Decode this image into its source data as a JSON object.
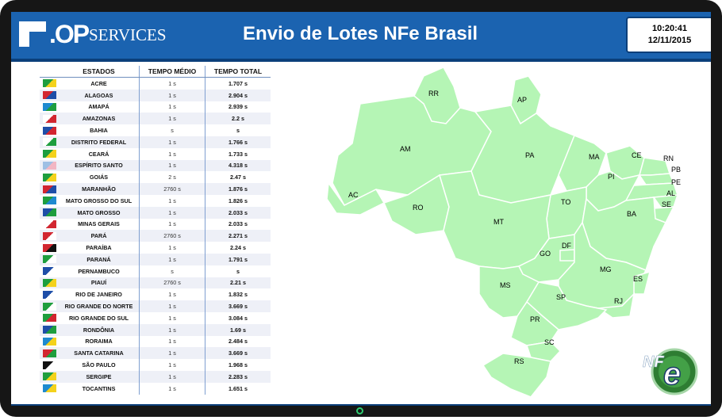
{
  "header": {
    "logo_op": ".OP",
    "logo_services": "SERVICES",
    "title": "Envio de Lotes NFe Brasil",
    "time": "10:20:41",
    "date": "12/11/2015"
  },
  "table": {
    "col_state": "ESTADOS",
    "col_avg": "TEMPO MÉDIO",
    "col_total": "TEMPO TOTAL",
    "rows": [
      {
        "state": "ACRE",
        "avg": "1 s",
        "total": "1.707 s",
        "flag": [
          "#1e9e3e",
          "#f4d21c"
        ]
      },
      {
        "state": "ALAGOAS",
        "avg": "1 s",
        "total": "2.904 s",
        "flag": [
          "#d22630",
          "#1e4ea8"
        ]
      },
      {
        "state": "AMAPÁ",
        "avg": "1 s",
        "total": "2.939 s",
        "flag": [
          "#1e8ad0",
          "#1e9e3e"
        ]
      },
      {
        "state": "AMAZONAS",
        "avg": "1 s",
        "total": "2.2 s",
        "flag": [
          "#ffffff",
          "#d22630"
        ]
      },
      {
        "state": "BAHIA",
        "avg": "s",
        "total": "s",
        "flag": [
          "#1e4ea8",
          "#d22630"
        ]
      },
      {
        "state": "DISTRITO FEDERAL",
        "avg": "1 s",
        "total": "1.766 s",
        "flag": [
          "#ffffff",
          "#1e9e3e"
        ]
      },
      {
        "state": "CEARÁ",
        "avg": "1 s",
        "total": "1.733 s",
        "flag": [
          "#1e9e3e",
          "#f4d21c"
        ]
      },
      {
        "state": "ESPÍRITO SANTO",
        "avg": "1 s",
        "total": "4.318 s",
        "flag": [
          "#9ebfe4",
          "#f2b6c3"
        ]
      },
      {
        "state": "GOIÁS",
        "avg": "2 s",
        "total": "2.47 s",
        "flag": [
          "#1e9e3e",
          "#f4d21c"
        ]
      },
      {
        "state": "MARANHÃO",
        "avg": "2760 s",
        "total": "1.876 s",
        "flag": [
          "#d22630",
          "#1e4ea8"
        ]
      },
      {
        "state": "MATO GROSSO DO SUL",
        "avg": "1 s",
        "total": "1.826 s",
        "flag": [
          "#1e9e3e",
          "#1e8ad0"
        ]
      },
      {
        "state": "MATO GROSSO",
        "avg": "1 s",
        "total": "2.033 s",
        "flag": [
          "#1e4ea8",
          "#1e9e3e"
        ]
      },
      {
        "state": "MINAS GERAIS",
        "avg": "1 s",
        "total": "2.033 s",
        "flag": [
          "#ffffff",
          "#d22630"
        ]
      },
      {
        "state": "PARÁ",
        "avg": "2760 s",
        "total": "2.271 s",
        "flag": [
          "#d22630",
          "#ffffff"
        ]
      },
      {
        "state": "PARAÍBA",
        "avg": "1 s",
        "total": "2.24 s",
        "flag": [
          "#d22630",
          "#111111"
        ]
      },
      {
        "state": "PARANÁ",
        "avg": "1 s",
        "total": "1.791 s",
        "flag": [
          "#1e9e3e",
          "#ffffff"
        ]
      },
      {
        "state": "PERNAMBUCO",
        "avg": "s",
        "total": "s",
        "flag": [
          "#1e4ea8",
          "#ffffff"
        ]
      },
      {
        "state": "PIAUÍ",
        "avg": "2760 s",
        "total": "2.21 s",
        "flag": [
          "#1e9e3e",
          "#f4d21c"
        ]
      },
      {
        "state": "RIO DE JANEIRO",
        "avg": "1 s",
        "total": "1.832 s",
        "flag": [
          "#1e4ea8",
          "#ffffff"
        ]
      },
      {
        "state": "RIO GRANDE DO NORTE",
        "avg": "1 s",
        "total": "3.669 s",
        "flag": [
          "#1e9e3e",
          "#ffffff"
        ]
      },
      {
        "state": "RIO GRANDE DO SUL",
        "avg": "1 s",
        "total": "3.084 s",
        "flag": [
          "#1e9e3e",
          "#d22630"
        ]
      },
      {
        "state": "RONDÔNIA",
        "avg": "1 s",
        "total": "1.69 s",
        "flag": [
          "#1e4ea8",
          "#1e9e3e"
        ]
      },
      {
        "state": "RORAIMA",
        "avg": "1 s",
        "total": "2.484 s",
        "flag": [
          "#1e8ad0",
          "#f4d21c"
        ]
      },
      {
        "state": "SANTA CATARINA",
        "avg": "1 s",
        "total": "3.669 s",
        "flag": [
          "#d22630",
          "#1e9e3e"
        ]
      },
      {
        "state": "SÃO PAULO",
        "avg": "1 s",
        "total": "1.968 s",
        "flag": [
          "#111111",
          "#ffffff"
        ]
      },
      {
        "state": "SERGIPE",
        "avg": "1 s",
        "total": "2.283 s",
        "flag": [
          "#1e9e3e",
          "#f4d21c"
        ]
      },
      {
        "state": "TOCANTINS",
        "avg": "1 s",
        "total": "1.651 s",
        "flag": [
          "#1e8ad0",
          "#f4d21c"
        ]
      }
    ]
  },
  "map": {
    "fill_color": "#b5f5b5",
    "labels": [
      "RR",
      "AP",
      "AM",
      "PA",
      "MA",
      "CE",
      "RN",
      "PB",
      "PI",
      "PE",
      "AC",
      "AL",
      "SE",
      "TO",
      "RO",
      "BA",
      "MT",
      "DF",
      "GO",
      "MG",
      "ES",
      "MS",
      "SP",
      "RJ",
      "PR",
      "SC",
      "RS"
    ]
  },
  "nfe_logo": {
    "text_nf": "NF",
    "text_e": "e"
  },
  "colors": {
    "header": "#1b63b0",
    "header_border": "#0b3f7a",
    "table_divider": "#7f9fd0",
    "power_led": "#2ecc71"
  }
}
